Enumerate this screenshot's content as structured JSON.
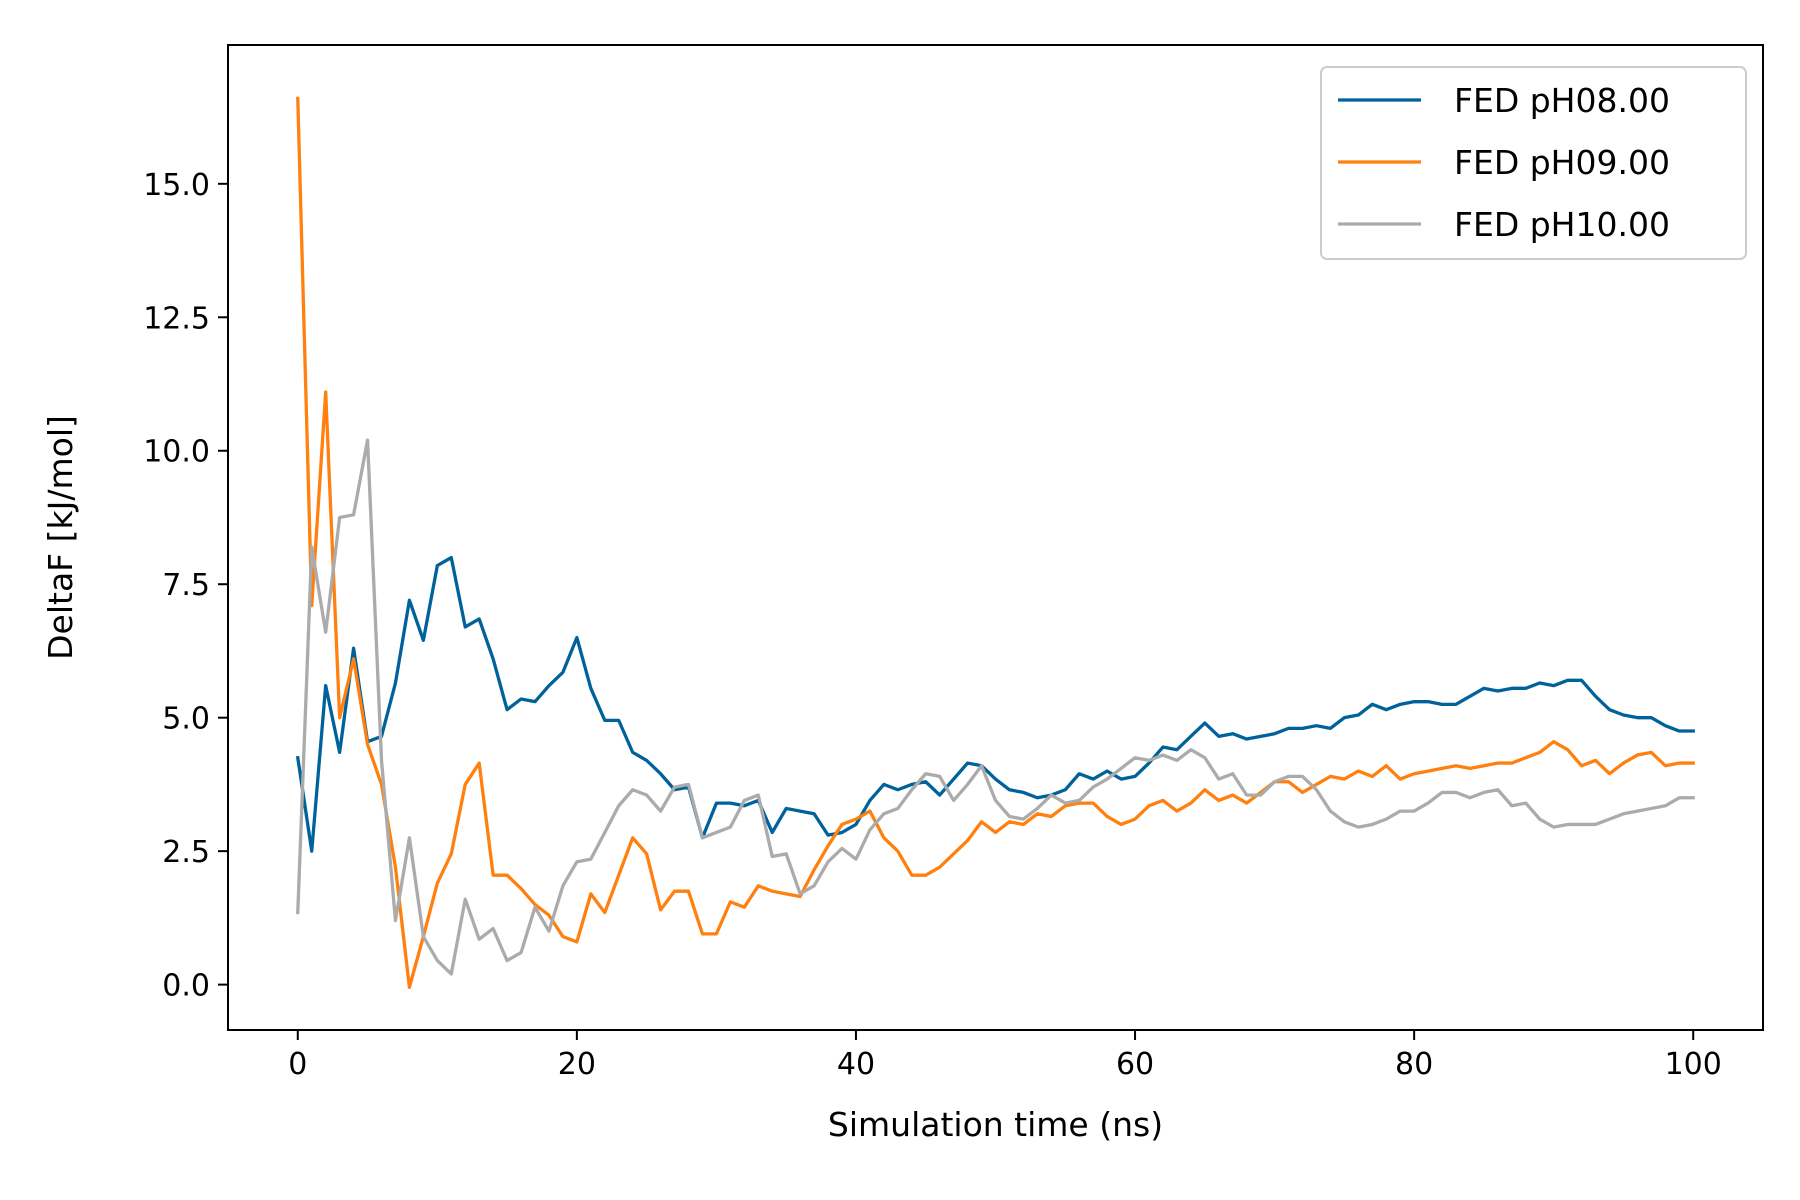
{
  "chart_data": {
    "type": "line",
    "title": "",
    "xlabel": "Simulation time (ns)",
    "ylabel": "DeltaF [kJ/mol]",
    "xlim": [
      -5,
      105
    ],
    "ylim": [
      -0.85,
      17.6
    ],
    "xticks": [
      0,
      20,
      40,
      60,
      80,
      100
    ],
    "xtick_labels": [
      "0",
      "20",
      "40",
      "60",
      "80",
      "100"
    ],
    "yticks": [
      0,
      2.5,
      5,
      7.5,
      10,
      12.5,
      15
    ],
    "ytick_labels": [
      "0.0",
      "2.5",
      "5.0",
      "7.5",
      "10.0",
      "12.5",
      "15.0"
    ],
    "grid": false,
    "legend": "top-right",
    "x": [
      0,
      1,
      2,
      3,
      4,
      5,
      6,
      7,
      8,
      9,
      10,
      11,
      12,
      13,
      14,
      15,
      16,
      17,
      18,
      19,
      20,
      21,
      22,
      23,
      24,
      25,
      26,
      27,
      28,
      29,
      30,
      31,
      32,
      33,
      34,
      35,
      36,
      37,
      38,
      39,
      40,
      41,
      42,
      43,
      44,
      45,
      46,
      47,
      48,
      49,
      50,
      51,
      52,
      53,
      54,
      55,
      56,
      57,
      58,
      59,
      60,
      61,
      62,
      63,
      64,
      65,
      66,
      67,
      68,
      69,
      70,
      71,
      72,
      73,
      74,
      75,
      76,
      77,
      78,
      79,
      80,
      81,
      82,
      83,
      84,
      85,
      86,
      87,
      88,
      89,
      90,
      91,
      92,
      93,
      94,
      95,
      96,
      97,
      98,
      99,
      100
    ],
    "series": [
      {
        "name": "FED pH08.00",
        "color": "#00629b",
        "values": [
          4.25,
          2.5,
          5.6,
          4.35,
          6.3,
          4.55,
          4.65,
          5.65,
          7.2,
          6.45,
          7.85,
          8.0,
          6.7,
          6.85,
          6.1,
          5.15,
          5.35,
          5.3,
          5.6,
          5.85,
          6.5,
          5.55,
          4.95,
          4.95,
          4.35,
          4.2,
          3.95,
          3.65,
          3.7,
          2.75,
          3.4,
          3.4,
          3.35,
          3.45,
          2.85,
          3.3,
          3.25,
          3.2,
          2.8,
          2.85,
          3.0,
          3.45,
          3.75,
          3.65,
          3.75,
          3.8,
          3.55,
          3.85,
          4.15,
          4.1,
          3.85,
          3.65,
          3.6,
          3.5,
          3.55,
          3.65,
          3.95,
          3.85,
          4.0,
          3.85,
          3.9,
          4.15,
          4.45,
          4.4,
          4.65,
          4.9,
          4.65,
          4.7,
          4.6,
          4.65,
          4.7,
          4.8,
          4.8,
          4.85,
          4.8,
          5.0,
          5.05,
          5.25,
          5.15,
          5.25,
          5.3,
          5.3,
          5.25,
          5.25,
          5.4,
          5.55,
          5.5,
          5.55,
          5.55,
          5.65,
          5.6,
          5.7,
          5.7,
          5.4,
          5.15,
          5.05,
          5.0,
          5.0,
          4.85,
          4.75,
          4.75
        ]
      },
      {
        "name": "FED pH09.00",
        "color": "#ff800e",
        "values": [
          16.6,
          7.1,
          11.1,
          5.0,
          6.1,
          4.5,
          3.75,
          2.2,
          -0.05,
          0.9,
          1.9,
          2.45,
          3.75,
          4.15,
          2.05,
          2.05,
          1.8,
          1.5,
          1.3,
          0.9,
          0.8,
          1.7,
          1.35,
          2.05,
          2.75,
          2.45,
          1.4,
          1.75,
          1.75,
          0.95,
          0.95,
          1.55,
          1.45,
          1.85,
          1.75,
          1.7,
          1.65,
          2.15,
          2.6,
          3.0,
          3.1,
          3.25,
          2.75,
          2.5,
          2.05,
          2.05,
          2.2,
          2.45,
          2.7,
          3.05,
          2.85,
          3.05,
          3.0,
          3.2,
          3.15,
          3.35,
          3.4,
          3.4,
          3.15,
          3.0,
          3.1,
          3.35,
          3.45,
          3.25,
          3.4,
          3.65,
          3.45,
          3.55,
          3.4,
          3.6,
          3.8,
          3.8,
          3.6,
          3.75,
          3.9,
          3.85,
          4.0,
          3.9,
          4.1,
          3.85,
          3.95,
          4.0,
          4.05,
          4.1,
          4.05,
          4.1,
          4.15,
          4.15,
          4.25,
          4.35,
          4.55,
          4.4,
          4.1,
          4.2,
          3.95,
          4.15,
          4.3,
          4.35,
          4.1,
          4.15,
          4.15
        ]
      },
      {
        "name": "FED pH10.00",
        "color": "#ababab",
        "values": [
          1.35,
          8.2,
          6.6,
          8.75,
          8.8,
          10.2,
          4.2,
          1.2,
          2.75,
          0.9,
          0.45,
          0.2,
          1.6,
          0.85,
          1.05,
          0.45,
          0.6,
          1.45,
          1.0,
          1.85,
          2.3,
          2.35,
          2.85,
          3.35,
          3.65,
          3.55,
          3.25,
          3.7,
          3.75,
          2.75,
          2.85,
          2.95,
          3.45,
          3.55,
          2.4,
          2.45,
          1.7,
          1.85,
          2.3,
          2.55,
          2.35,
          2.9,
          3.2,
          3.3,
          3.65,
          3.95,
          3.9,
          3.45,
          3.75,
          4.1,
          3.45,
          3.15,
          3.1,
          3.3,
          3.55,
          3.4,
          3.45,
          3.7,
          3.85,
          4.05,
          4.25,
          4.2,
          4.3,
          4.2,
          4.4,
          4.25,
          3.85,
          3.95,
          3.55,
          3.55,
          3.8,
          3.9,
          3.9,
          3.65,
          3.25,
          3.05,
          2.95,
          3.0,
          3.1,
          3.25,
          3.25,
          3.4,
          3.6,
          3.6,
          3.5,
          3.6,
          3.65,
          3.35,
          3.4,
          3.1,
          2.95,
          3.0,
          3.0,
          3.0,
          3.1,
          3.2,
          3.25,
          3.3,
          3.35,
          3.5,
          3.5
        ]
      }
    ]
  }
}
